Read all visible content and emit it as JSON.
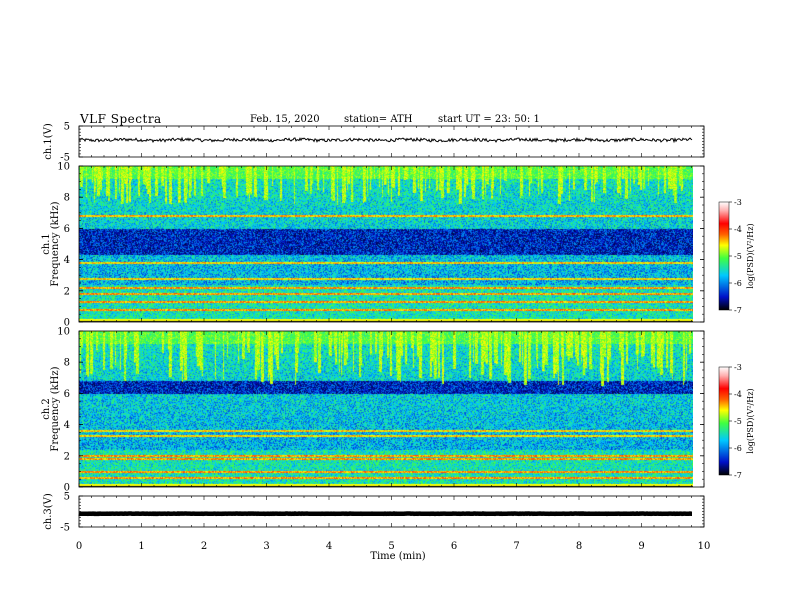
{
  "header": {
    "title": "VLF  Spectra",
    "date": "Feb. 15, 2020",
    "station": "station= ATH",
    "start": "start  UT  =    23: 50: 1"
  },
  "chart_data": [
    {
      "type": "line",
      "panel": "ch1-waveform",
      "ylabel": "ch.1(V)",
      "ylim": [
        -5,
        5
      ],
      "ytick_labels": [
        "5",
        "-5"
      ],
      "xlim": [
        0,
        10
      ],
      "x_coverage": [
        0,
        9.82
      ],
      "approx_level": 0.5,
      "approx_noise_amplitude": 0.5,
      "line_color": "#000000"
    },
    {
      "type": "heatmap",
      "panel": "ch1-spectrogram",
      "ylabel_top": "ch.1",
      "ylabel": "Frequency  (kHz)",
      "ylim": [
        0,
        10
      ],
      "ytick_labels": [
        "0",
        "2",
        "4",
        "6",
        "8",
        "10"
      ],
      "xlim": [
        0,
        10
      ],
      "x_coverage": [
        0,
        9.82
      ],
      "colorbar": {
        "label": "log(PSD)(V²/Hz)",
        "range": [
          -7,
          -3
        ],
        "tick_labels": [
          "-3",
          "-4",
          "-5",
          "-6",
          "-7"
        ],
        "colors": [
          "#000000",
          "#0010c8",
          "#00c8ff",
          "#40ff40",
          "#ffff00",
          "#ff6000",
          "#ff0000",
          "#ffb0b0",
          "#ffffff"
        ]
      },
      "features": {
        "quiet_band_khz": [
          4.3,
          6.0
        ],
        "spectral_lines_khz": [
          0.8,
          1.3,
          1.8,
          2.2,
          2.8,
          3.8,
          6.8
        ],
        "burst_region_khz": [
          7.5,
          10
        ]
      }
    },
    {
      "type": "heatmap",
      "panel": "ch2-spectrogram",
      "ylabel_top": "ch.2",
      "ylabel": "Frequency  (kHz)",
      "ylim": [
        0,
        10
      ],
      "ytick_labels": [
        "0",
        "2",
        "4",
        "6",
        "8",
        "10"
      ],
      "xlim": [
        0,
        10
      ],
      "x_coverage": [
        0,
        9.82
      ],
      "colorbar": {
        "label": "log(PSD)(V²/Hz)",
        "range": [
          -7,
          -3
        ],
        "tick_labels": [
          "-3",
          "-4",
          "-5",
          "-6",
          "-7"
        ],
        "colors": [
          "#000000",
          "#0010c8",
          "#00c8ff",
          "#40ff40",
          "#ffff00",
          "#ff6000",
          "#ff0000",
          "#ffb0b0",
          "#ffffff"
        ]
      },
      "features": {
        "quiet_band_khz": [
          6.0,
          6.8
        ],
        "spectral_lines_khz": [
          0.6,
          1.0,
          1.8,
          2.0,
          3.3,
          3.6
        ],
        "burst_region_khz": [
          6.5,
          10
        ]
      }
    },
    {
      "type": "line",
      "panel": "ch3-waveform",
      "ylabel": "ch.3(V)",
      "ylim": [
        -5,
        5
      ],
      "ytick_labels": [
        "5",
        "-5"
      ],
      "xlim": [
        0,
        10
      ],
      "x_coverage": [
        0,
        9.82
      ],
      "approx_level": -0.7,
      "approx_noise_amplitude": 0.05,
      "line_color": "#000000",
      "xlabel": "Time  (min)",
      "xtick_labels": [
        "0",
        "1",
        "2",
        "3",
        "4",
        "5",
        "6",
        "7",
        "8",
        "9",
        "10"
      ]
    }
  ]
}
